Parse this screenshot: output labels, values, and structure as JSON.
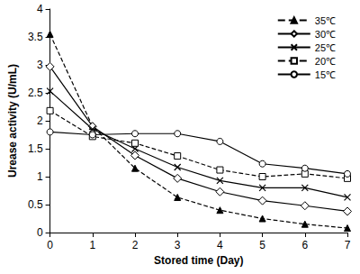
{
  "chart_data": {
    "type": "line",
    "x_label": "Stored time (Day)",
    "y_label": "Urease activity (U/mL)",
    "x": [
      0,
      1,
      2,
      3,
      4,
      5,
      6,
      7
    ],
    "xlim": [
      0,
      7
    ],
    "xticks": [
      0,
      1,
      2,
      3,
      4,
      5,
      6,
      7
    ],
    "ylim": [
      0,
      4
    ],
    "yticks": [
      0,
      0.5,
      1,
      1.5,
      2,
      2.5,
      3,
      3.5,
      4
    ],
    "grid": false,
    "legend": "upper right",
    "series": [
      {
        "name": "35℃",
        "color": "#000000",
        "marker": "filled_triangle",
        "line_style": "dashed",
        "values": [
          3.55,
          1.9,
          1.15,
          0.63,
          0.4,
          0.25,
          0.15,
          0.08
        ]
      },
      {
        "name": "30℃",
        "color": "#000000",
        "marker": "open_diamond",
        "line_style": "solid",
        "values": [
          2.97,
          1.9,
          1.38,
          0.97,
          0.73,
          0.57,
          0.48,
          0.38
        ]
      },
      {
        "name": "25℃",
        "color": "#000000",
        "marker": "x",
        "line_style": "solid",
        "values": [
          2.53,
          1.85,
          1.5,
          1.17,
          0.93,
          0.8,
          0.8,
          0.63
        ]
      },
      {
        "name": "20℃",
        "color": "#000000",
        "marker": "open_square",
        "line_style": "dashed",
        "values": [
          2.18,
          1.72,
          1.6,
          1.37,
          1.12,
          1.0,
          1.05,
          0.97
        ]
      },
      {
        "name": "15℃",
        "color": "#000000",
        "marker": "open_circle",
        "line_style": "solid",
        "values": [
          1.8,
          1.75,
          1.77,
          1.77,
          1.63,
          1.23,
          1.15,
          1.05
        ]
      }
    ]
  }
}
